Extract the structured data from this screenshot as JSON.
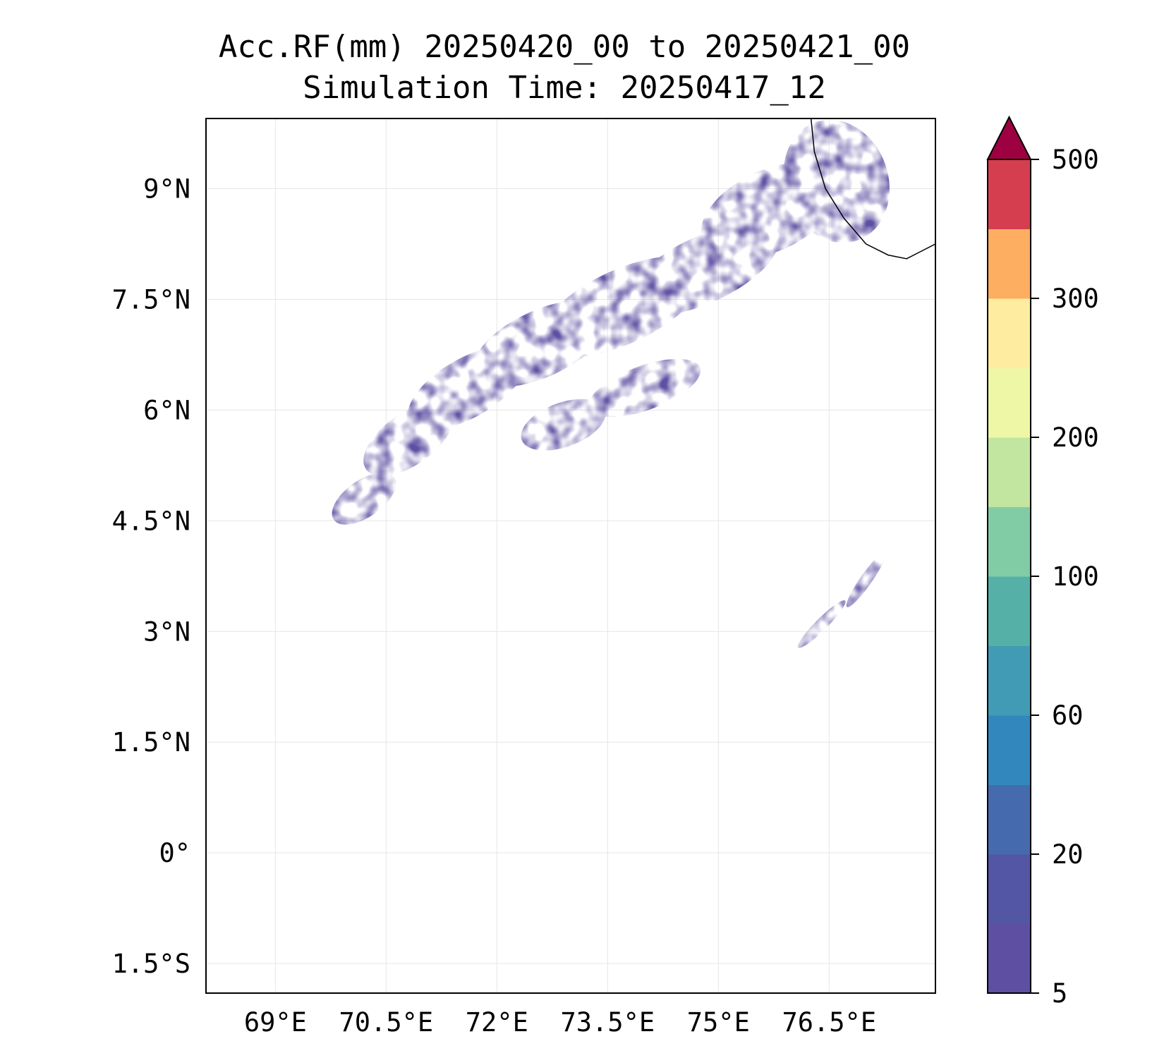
{
  "title": {
    "line1": "Acc.RF(mm) 20250420_00 to 20250421_00",
    "line2": "Simulation Time: 20250417_12"
  },
  "map": {
    "lon_range": [
      68.06,
      77.94
    ],
    "lat_range": [
      -1.9,
      9.95
    ],
    "lon_ticks": [
      69,
      70.5,
      72,
      73.5,
      75,
      76.5
    ],
    "lon_tick_labels": [
      "69°E",
      "70.5°E",
      "72°E",
      "73.5°E",
      "75°E",
      "76.5°E"
    ],
    "lat_ticks": [
      9,
      7.5,
      6,
      4.5,
      3,
      1.5,
      0,
      -1.5
    ],
    "lat_tick_labels": [
      "9°N",
      "7.5°N",
      "6°N",
      "4.5°N",
      "3°N",
      "1.5°N",
      "0°",
      "1.5°S"
    ],
    "gridlines": true,
    "coastline": [
      [
        76.25,
        10.0
      ],
      [
        76.3,
        9.5
      ],
      [
        76.45,
        9.0
      ],
      [
        76.7,
        8.6
      ],
      [
        77.0,
        8.25
      ],
      [
        77.3,
        8.1
      ],
      [
        77.55,
        8.05
      ],
      [
        77.94,
        8.25
      ]
    ],
    "rain_patches": [
      {
        "lon": 70.2,
        "lat": 4.8,
        "rx": 0.5,
        "ry": 0.25,
        "rot": -35
      },
      {
        "lon": 70.8,
        "lat": 5.6,
        "rx": 0.7,
        "ry": 0.35,
        "rot": -35
      },
      {
        "lon": 71.6,
        "lat": 6.3,
        "rx": 0.9,
        "ry": 0.4,
        "rot": -30
      },
      {
        "lon": 72.6,
        "lat": 6.9,
        "rx": 1.0,
        "ry": 0.45,
        "rot": -25
      },
      {
        "lon": 73.7,
        "lat": 7.4,
        "rx": 1.2,
        "ry": 0.5,
        "rot": -25
      },
      {
        "lon": 74.8,
        "lat": 7.9,
        "rx": 1.1,
        "ry": 0.45,
        "rot": -25
      },
      {
        "lon": 75.7,
        "lat": 8.7,
        "rx": 1.0,
        "ry": 0.55,
        "rot": -25
      },
      {
        "lon": 76.6,
        "lat": 9.1,
        "rx": 0.7,
        "ry": 0.85,
        "rot": -20
      },
      {
        "lon": 72.9,
        "lat": 5.8,
        "rx": 0.6,
        "ry": 0.3,
        "rot": -20
      },
      {
        "lon": 74.0,
        "lat": 6.3,
        "rx": 0.8,
        "ry": 0.3,
        "rot": -20
      },
      {
        "lon": 76.4,
        "lat": 3.1,
        "rx": 0.45,
        "ry": 0.08,
        "rot": -45
      },
      {
        "lon": 77.0,
        "lat": 3.7,
        "rx": 0.45,
        "ry": 0.08,
        "rot": -55
      }
    ]
  },
  "colorbar": {
    "tick_labels": [
      "5",
      "20",
      "60",
      "100",
      "200",
      "300",
      "500"
    ],
    "colors": [
      "#5e4fa2",
      "#5356a5",
      "#466aae",
      "#3288bd",
      "#429bb4",
      "#55b0a7",
      "#82cca5",
      "#c2e5a0",
      "#eef7a6",
      "#feeda0",
      "#fdae61",
      "#d53e4f",
      "#9e0142"
    ]
  }
}
